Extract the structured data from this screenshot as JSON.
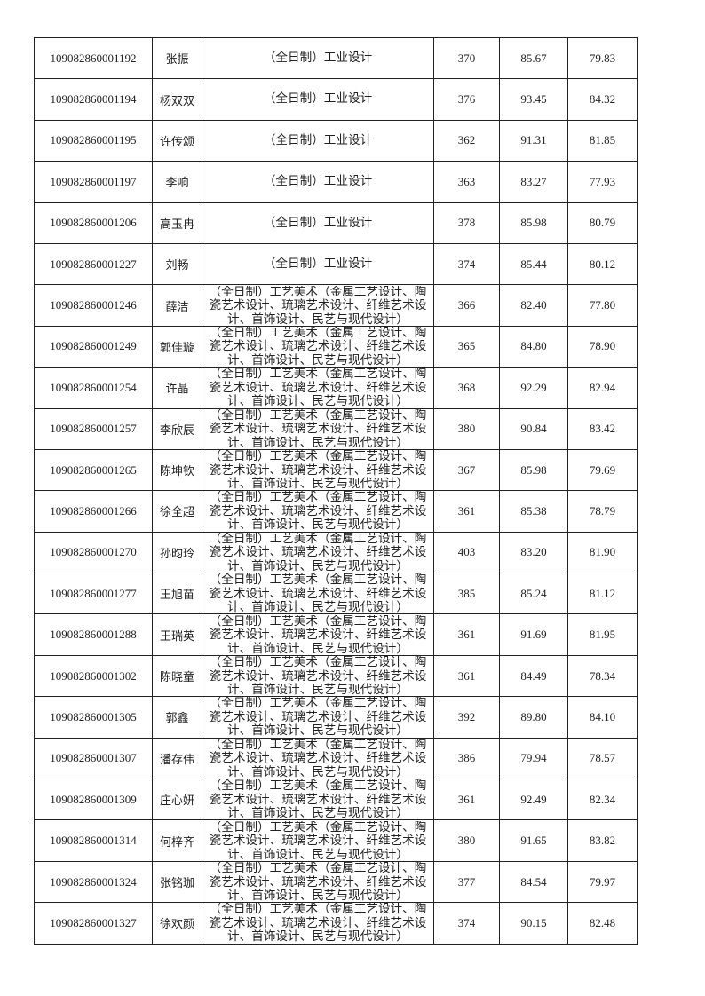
{
  "table": {
    "rows": [
      {
        "id": "109082860001192",
        "name": "张振",
        "major": "（全日制）工业设计",
        "score": "370",
        "retest": "85.67",
        "total": "79.83"
      },
      {
        "id": "109082860001194",
        "name": "杨双双",
        "major": "（全日制）工业设计",
        "score": "376",
        "retest": "93.45",
        "total": "84.32"
      },
      {
        "id": "109082860001195",
        "name": "许传颂",
        "major": "（全日制）工业设计",
        "score": "362",
        "retest": "91.31",
        "total": "81.85"
      },
      {
        "id": "109082860001197",
        "name": "李响",
        "major": "（全日制）工业设计",
        "score": "363",
        "retest": "83.27",
        "total": "77.93"
      },
      {
        "id": "109082860001206",
        "name": "高玉冉",
        "major": "（全日制）工业设计",
        "score": "378",
        "retest": "85.98",
        "total": "80.79"
      },
      {
        "id": "109082860001227",
        "name": "刘畅",
        "major": "（全日制）工业设计",
        "score": "374",
        "retest": "85.44",
        "total": "80.12"
      },
      {
        "id": "109082860001246",
        "name": "薛洁",
        "major": "（全日制）工艺美术（金属工艺设计、陶瓷艺术设计、琉璃艺术设计、纤维艺术设计、首饰设计、民艺与现代设计）",
        "score": "366",
        "retest": "82.40",
        "total": "77.80"
      },
      {
        "id": "109082860001249",
        "name": "郭佳璇",
        "major": "（全日制）工艺美术（金属工艺设计、陶瓷艺术设计、琉璃艺术设计、纤维艺术设计、首饰设计、民艺与现代设计）",
        "score": "365",
        "retest": "84.80",
        "total": "78.90"
      },
      {
        "id": "109082860001254",
        "name": "许晶",
        "major": "（全日制）工艺美术（金属工艺设计、陶瓷艺术设计、琉璃艺术设计、纤维艺术设计、首饰设计、民艺与现代设计）",
        "score": "368",
        "retest": "92.29",
        "total": "82.94"
      },
      {
        "id": "109082860001257",
        "name": "李欣辰",
        "major": "（全日制）工艺美术（金属工艺设计、陶瓷艺术设计、琉璃艺术设计、纤维艺术设计、首饰设计、民艺与现代设计）",
        "score": "380",
        "retest": "90.84",
        "total": "83.42"
      },
      {
        "id": "109082860001265",
        "name": "陈坤钦",
        "major": "（全日制）工艺美术（金属工艺设计、陶瓷艺术设计、琉璃艺术设计、纤维艺术设计、首饰设计、民艺与现代设计）",
        "score": "367",
        "retest": "85.98",
        "total": "79.69"
      },
      {
        "id": "109082860001266",
        "name": "徐全超",
        "major": "（全日制）工艺美术（金属工艺设计、陶瓷艺术设计、琉璃艺术设计、纤维艺术设计、首饰设计、民艺与现代设计）",
        "score": "361",
        "retest": "85.38",
        "total": "78.79"
      },
      {
        "id": "109082860001270",
        "name": "孙昀玲",
        "major": "（全日制）工艺美术（金属工艺设计、陶瓷艺术设计、琉璃艺术设计、纤维艺术设计、首饰设计、民艺与现代设计）",
        "score": "403",
        "retest": "83.20",
        "total": "81.90"
      },
      {
        "id": "109082860001277",
        "name": "王旭苗",
        "major": "（全日制）工艺美术（金属工艺设计、陶瓷艺术设计、琉璃艺术设计、纤维艺术设计、首饰设计、民艺与现代设计）",
        "score": "385",
        "retest": "85.24",
        "total": "81.12"
      },
      {
        "id": "109082860001288",
        "name": "王瑞英",
        "major": "（全日制）工艺美术（金属工艺设计、陶瓷艺术设计、琉璃艺术设计、纤维艺术设计、首饰设计、民艺与现代设计）",
        "score": "361",
        "retest": "91.69",
        "total": "81.95"
      },
      {
        "id": "109082860001302",
        "name": "陈晓童",
        "major": "（全日制）工艺美术（金属工艺设计、陶瓷艺术设计、琉璃艺术设计、纤维艺术设计、首饰设计、民艺与现代设计）",
        "score": "361",
        "retest": "84.49",
        "total": "78.34"
      },
      {
        "id": "109082860001305",
        "name": "郭鑫",
        "major": "（全日制）工艺美术（金属工艺设计、陶瓷艺术设计、琉璃艺术设计、纤维艺术设计、首饰设计、民艺与现代设计）",
        "score": "392",
        "retest": "89.80",
        "total": "84.10"
      },
      {
        "id": "109082860001307",
        "name": "潘存伟",
        "major": "（全日制）工艺美术（金属工艺设计、陶瓷艺术设计、琉璃艺术设计、纤维艺术设计、首饰设计、民艺与现代设计）",
        "score": "386",
        "retest": "79.94",
        "total": "78.57"
      },
      {
        "id": "109082860001309",
        "name": "庄心妍",
        "major": "（全日制）工艺美术（金属工艺设计、陶瓷艺术设计、琉璃艺术设计、纤维艺术设计、首饰设计、民艺与现代设计）",
        "score": "361",
        "retest": "92.49",
        "total": "82.34"
      },
      {
        "id": "109082860001314",
        "name": "何梓齐",
        "major": "（全日制）工艺美术（金属工艺设计、陶瓷艺术设计、琉璃艺术设计、纤维艺术设计、首饰设计、民艺与现代设计）",
        "score": "380",
        "retest": "91.65",
        "total": "83.82"
      },
      {
        "id": "109082860001324",
        "name": "张铭珈",
        "major": "（全日制）工艺美术（金属工艺设计、陶瓷艺术设计、琉璃艺术设计、纤维艺术设计、首饰设计、民艺与现代设计）",
        "score": "377",
        "retest": "84.54",
        "total": "79.97"
      },
      {
        "id": "109082860001327",
        "name": "徐欢颜",
        "major": "（全日制）工艺美术（金属工艺设计、陶瓷艺术设计、琉璃艺术设计、纤维艺术设计、首饰设计、民艺与现代设计）",
        "score": "374",
        "retest": "90.15",
        "total": "82.48"
      }
    ]
  }
}
